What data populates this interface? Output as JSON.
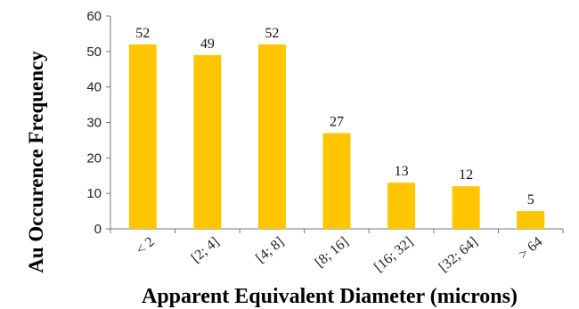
{
  "chart_data": {
    "type": "bar",
    "title": "",
    "xlabel": "Apparent Equivalent Diameter (microns)",
    "ylabel": "Au Occurence Frequency",
    "categories": [
      "< 2",
      "[2; 4]",
      "[4; 8]",
      "[8; 16]",
      "[16; 32]",
      "[32; 64]",
      "> 64"
    ],
    "values": [
      52,
      49,
      52,
      27,
      13,
      12,
      5
    ],
    "ylim": [
      0,
      60
    ],
    "yticks": [
      0,
      10,
      20,
      30,
      40,
      50,
      60
    ],
    "bar_color": "#FFC600",
    "grid": false,
    "legend": "none"
  }
}
